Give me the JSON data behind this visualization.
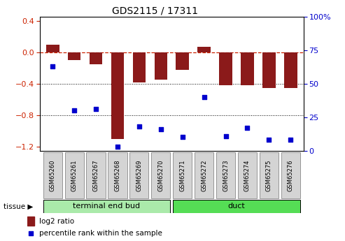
{
  "title": "GDS2115 / 17311",
  "samples": [
    "GSM65260",
    "GSM65261",
    "GSM65267",
    "GSM65268",
    "GSM65269",
    "GSM65270",
    "GSM65271",
    "GSM65272",
    "GSM65273",
    "GSM65274",
    "GSM65275",
    "GSM65276"
  ],
  "log2_ratio": [
    0.1,
    -0.1,
    -0.15,
    -1.1,
    -0.38,
    -0.35,
    -0.22,
    0.07,
    -0.42,
    -0.42,
    -0.45,
    -0.45
  ],
  "percentile_rank": [
    63,
    30,
    31,
    3,
    18,
    16,
    10,
    40,
    11,
    17,
    8,
    8
  ],
  "bar_color": "#8B1A1A",
  "scatter_color": "#0000CD",
  "ylim_left": [
    -1.25,
    0.45
  ],
  "ylim_right": [
    0,
    100
  ],
  "yticks_left": [
    0.4,
    0.0,
    -0.4,
    -0.8,
    -1.2
  ],
  "yticks_right": [
    100,
    75,
    50,
    25,
    0
  ],
  "dotted_lines": [
    -0.4,
    -0.8
  ],
  "teb_label": "terminal end bud",
  "teb_color": "#AAEAAA",
  "duct_label": "duct",
  "duct_color": "#55DD55",
  "teb_indices": [
    0,
    5
  ],
  "duct_indices": [
    6,
    11
  ],
  "legend_bar_label": "log2 ratio",
  "legend_pct_label": "percentile rank within the sample",
  "tissue_label": "tissue",
  "background_color": "#ffffff",
  "title_fontsize": 10,
  "axis_fontsize": 8,
  "sample_fontsize": 6,
  "tissue_fontsize": 8
}
